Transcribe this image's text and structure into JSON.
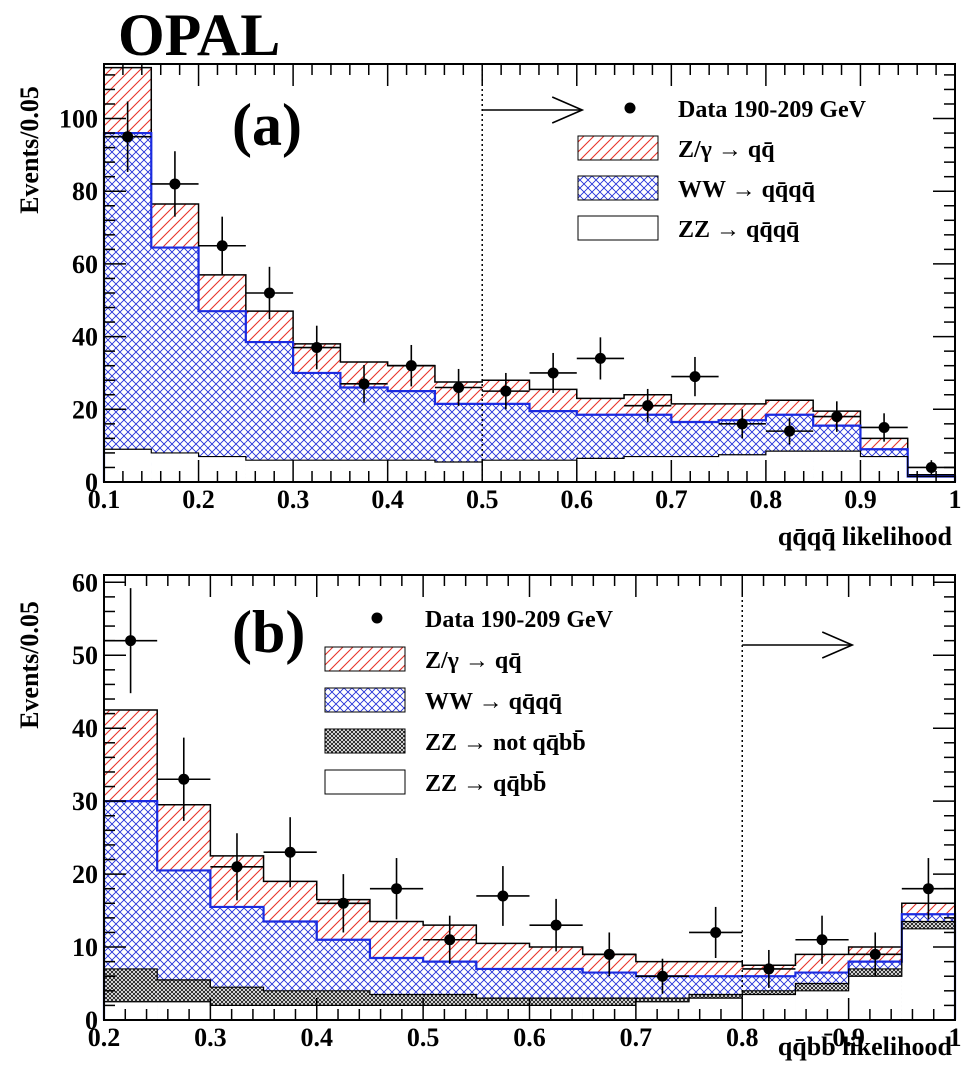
{
  "experiment": "OPAL",
  "chart_data": [
    {
      "panel": "(a)",
      "type": "bar",
      "ylabel": "Events/0.05",
      "xlabel": "q̄qq̄ likelihood",
      "xlabel_display": "qq̄qq̄ likelihood",
      "xlim": [
        0.1,
        1.0
      ],
      "ylim": [
        0,
        115
      ],
      "x_ticks": [
        "0.1",
        "0.2",
        "0.3",
        "0.4",
        "0.5",
        "0.6",
        "0.7",
        "0.8",
        "0.9",
        "1"
      ],
      "y_ticks": [
        "0",
        "20",
        "40",
        "60",
        "80",
        "100"
      ],
      "bin_edges": [
        0.1,
        0.15,
        0.2,
        0.25,
        0.3,
        0.35,
        0.4,
        0.45,
        0.5,
        0.55,
        0.6,
        0.65,
        0.7,
        0.75,
        0.8,
        0.85,
        0.9,
        0.95,
        1.0
      ],
      "cut": 0.5,
      "series": [
        {
          "name": "ZZ → qq̄qq̄",
          "style": "open",
          "values": [
            9,
            8,
            7,
            6,
            6,
            6,
            6,
            5.5,
            6,
            6,
            6.5,
            7,
            7,
            7.5,
            8.5,
            8.5,
            7,
            1.5
          ]
        },
        {
          "name": "WW → qq̄qq̄",
          "style": "crosshatch-blue",
          "values": [
            96,
            64.5,
            47,
            38.5,
            30,
            26,
            25,
            21.5,
            21.5,
            19.5,
            18.5,
            18.5,
            16.5,
            17,
            18.5,
            15.5,
            9,
            1.5
          ]
        },
        {
          "name": "Z/γ → qq̄",
          "style": "hatch-red",
          "values": [
            114,
            76.5,
            57,
            47,
            38,
            33,
            32,
            27.5,
            28,
            25.5,
            23,
            24,
            21.5,
            21.5,
            22.5,
            19.5,
            12,
            2
          ]
        }
      ],
      "data": {
        "name": "Data 190-209 GeV",
        "x": [
          0.125,
          0.175,
          0.225,
          0.275,
          0.325,
          0.375,
          0.425,
          0.475,
          0.525,
          0.575,
          0.625,
          0.675,
          0.725,
          0.775,
          0.825,
          0.875,
          0.925,
          0.975
        ],
        "y": [
          95,
          82,
          65,
          52,
          37,
          27,
          32,
          26,
          25,
          30,
          34,
          21,
          29,
          16,
          14,
          18,
          15,
          4
        ],
        "err": [
          9.7,
          9,
          8,
          7.2,
          6,
          5.2,
          5.7,
          5.1,
          5,
          5.5,
          5.8,
          4.6,
          5.4,
          4,
          3.7,
          4.2,
          3.9,
          2
        ]
      },
      "legend": [
        "Data 190-209 GeV",
        "Z/γ → qq̄",
        "WW → qq̄qq̄",
        "ZZ → qq̄qq̄"
      ]
    },
    {
      "panel": "(b)",
      "type": "bar",
      "ylabel": "Events/0.05",
      "xlabel_display": "qq̄bb̄ likelihood",
      "xlim": [
        0.2,
        1.0
      ],
      "ylim": [
        0,
        61
      ],
      "x_ticks": [
        "0.2",
        "0.3",
        "0.4",
        "0.5",
        "0.6",
        "0.7",
        "0.8",
        "0.9",
        "1"
      ],
      "y_ticks": [
        "0",
        "10",
        "20",
        "30",
        "40",
        "50",
        "60"
      ],
      "bin_edges": [
        0.2,
        0.25,
        0.3,
        0.35,
        0.4,
        0.45,
        0.5,
        0.55,
        0.6,
        0.65,
        0.7,
        0.75,
        0.8,
        0.85,
        0.9,
        0.95,
        1.0
      ],
      "cut": 0.8,
      "series": [
        {
          "name": "ZZ → qq̄bb̄",
          "style": "open",
          "values": [
            2.5,
            2.5,
            2,
            2,
            2,
            2,
            2,
            2,
            2,
            2,
            2.5,
            3,
            3.5,
            4,
            6,
            12.5
          ]
        },
        {
          "name": "ZZ → not qq̄bb̄",
          "style": "dense-black",
          "values": [
            7,
            5.5,
            4.5,
            4,
            4,
            3.5,
            3.5,
            3,
            3,
            3,
            3,
            3.5,
            4,
            5,
            7,
            13.5
          ]
        },
        {
          "name": "WW → qq̄qq̄",
          "style": "crosshatch-blue",
          "values": [
            30,
            20.5,
            15.5,
            13.5,
            11,
            8.5,
            8,
            7,
            7,
            6.5,
            6,
            6,
            6,
            6.5,
            8,
            14.5
          ]
        },
        {
          "name": "Z/γ → qq̄",
          "style": "hatch-red",
          "values": [
            42.5,
            29.5,
            22.5,
            19,
            16.5,
            13.5,
            13,
            10.5,
            10,
            9,
            8,
            8,
            7.5,
            9,
            10,
            16
          ]
        }
      ],
      "data": {
        "name": "Data 190-209 GeV",
        "x": [
          0.225,
          0.275,
          0.325,
          0.375,
          0.425,
          0.475,
          0.525,
          0.575,
          0.625,
          0.675,
          0.725,
          0.775,
          0.825,
          0.875,
          0.925,
          0.975
        ],
        "y": [
          52,
          33,
          21,
          23,
          16,
          18,
          11,
          17,
          13,
          9,
          6,
          12,
          7,
          11,
          9,
          18
        ],
        "err": [
          7.2,
          5.7,
          4.6,
          4.8,
          4,
          4.2,
          3.3,
          4.1,
          3.6,
          3,
          2.4,
          3.5,
          2.6,
          3.3,
          3,
          4.2
        ]
      },
      "legend": [
        "Data 190-209 GeV",
        "Z/γ → qq̄",
        "WW → qq̄qq̄",
        "ZZ → not qq̄bb̄",
        "ZZ → qq̄bb̄"
      ]
    }
  ]
}
